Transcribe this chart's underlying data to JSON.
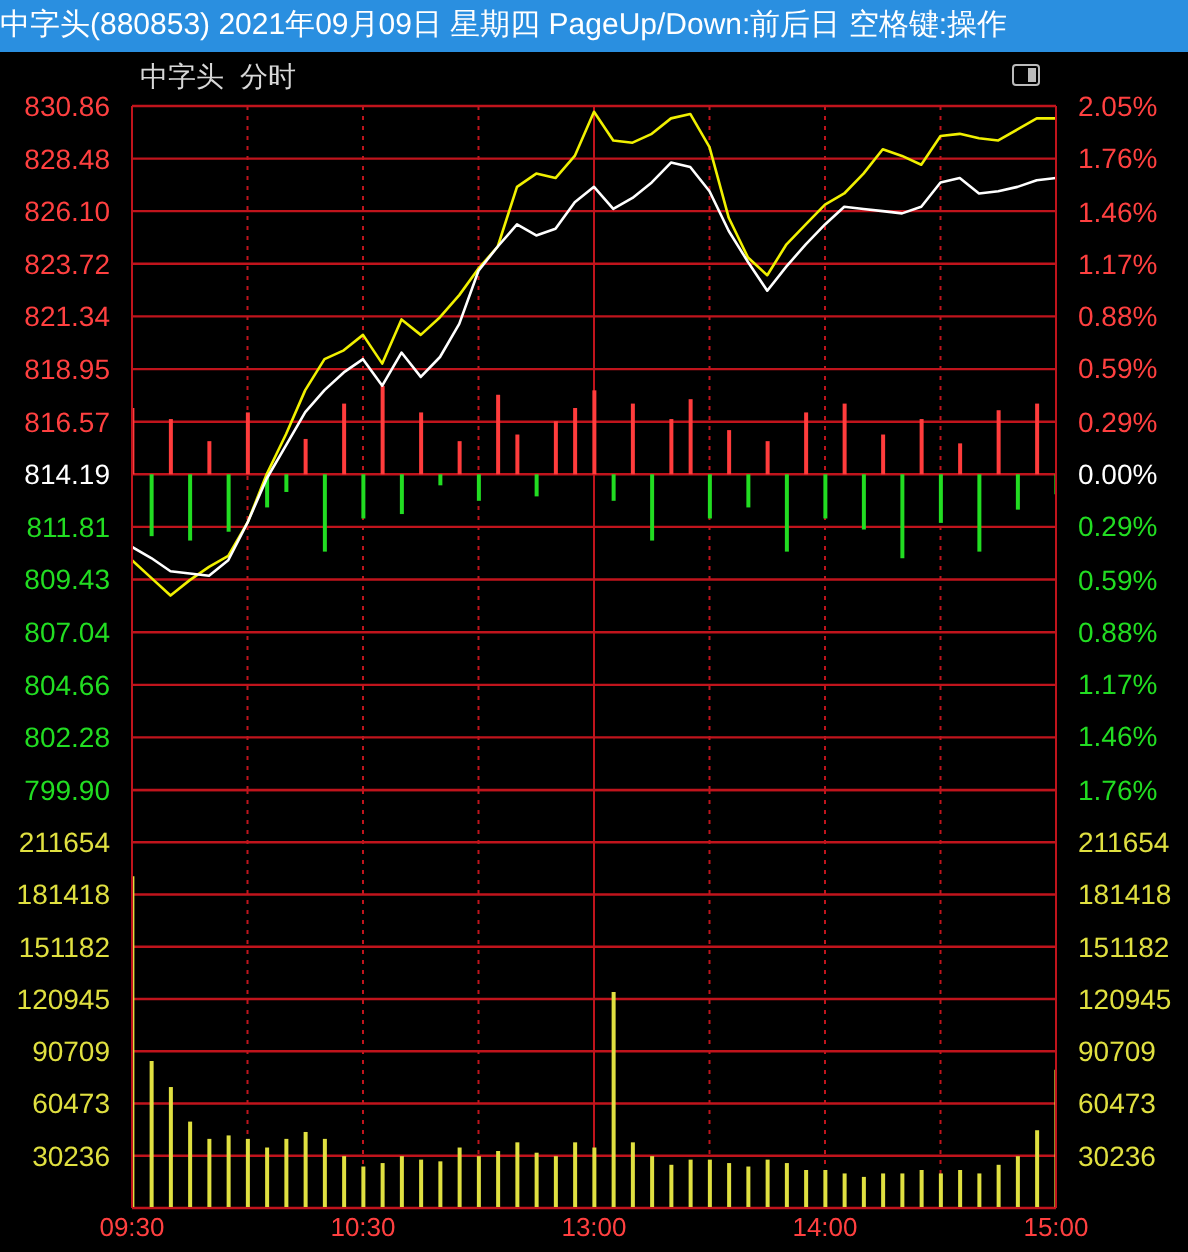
{
  "chart_data": [
    {
      "type": "line",
      "title": "中字头(880853) 2021年09月09日 星期四 PageUp/Down:前后日 空格键:操作",
      "subtitle": "中字头  分时",
      "categories": [
        null,
        null,
        null,
        null,
        null,
        null,
        null,
        null,
        null,
        null,
        null,
        null,
        null,
        null,
        null,
        null,
        null,
        null,
        null,
        null,
        null,
        null,
        null,
        null,
        null,
        null,
        null,
        null,
        null,
        null,
        null,
        null,
        null,
        null,
        null,
        null,
        null,
        null,
        null,
        null,
        null,
        null,
        null,
        null,
        null,
        null,
        null,
        null,
        null
      ],
      "series": [
        {
          "color": "#f0f000",
          "values": [
            810.3,
            809.5,
            808.7,
            809.4,
            810.0,
            810.5,
            812.0,
            814.2,
            816.0,
            818.0,
            819.4,
            819.8,
            820.5,
            819.2,
            821.2,
            820.5,
            821.3,
            822.3,
            823.5,
            824.5,
            827.2,
            827.8,
            827.6,
            828.6,
            830.6,
            829.3,
            829.2,
            829.6,
            830.3,
            830.5,
            829.0,
            825.8,
            824.0,
            823.2,
            824.6,
            825.5,
            826.4,
            826.9,
            827.8,
            828.9,
            828.6,
            828.2,
            829.5,
            829.6,
            829.4,
            829.3,
            829.8,
            830.3,
            830.3
          ]
        },
        {
          "color": "#ffffff",
          "values": [
            810.9,
            810.4,
            809.8,
            809.7,
            809.6,
            810.3,
            812.0,
            814.0,
            815.5,
            817.0,
            818.0,
            818.8,
            819.4,
            818.2,
            819.7,
            818.6,
            819.5,
            821.0,
            823.4,
            824.5,
            825.5,
            825.0,
            825.3,
            826.5,
            827.2,
            826.2,
            826.7,
            827.4,
            828.3,
            828.1,
            827.0,
            825.2,
            823.8,
            822.5,
            823.6,
            824.6,
            825.5,
            826.3,
            826.2,
            826.1,
            826.0,
            826.3,
            827.4,
            827.6,
            826.9,
            827.0,
            827.2,
            827.5,
            827.6
          ]
        },
        {
          "type": "bar",
          "values": [
            3.0,
            -2.8,
            2.5,
            -3.0,
            1.5,
            -2.6,
            2.8,
            -1.5,
            -0.8,
            1.6,
            -3.5,
            3.2,
            -2.0,
            4.0,
            -1.8,
            2.8,
            -0.5,
            1.5,
            -1.2,
            3.6,
            1.8,
            -1.0,
            2.4,
            3.0,
            3.8,
            -1.2,
            3.2,
            -3.0,
            2.5,
            3.4,
            -2.0,
            2.0,
            -1.5,
            1.5,
            -3.5,
            2.8,
            -2.0,
            3.2,
            -2.5,
            1.8,
            -3.8,
            2.5,
            -2.2,
            1.4,
            -3.5,
            2.9,
            -1.6,
            3.2,
            -0.9
          ],
          "base": [
            814.19,
            814.19,
            814.19,
            814.19,
            814.19,
            814.19,
            814.19,
            814.19,
            814.19,
            814.19,
            814.19,
            814.19,
            814.19,
            814.19,
            814.19,
            814.19,
            814.19,
            814.19,
            814.19,
            814.19,
            814.19,
            814.19,
            814.19,
            814.19,
            814.19,
            814.19,
            814.19,
            814.19,
            814.19,
            814.19,
            814.19,
            814.19,
            814.19,
            814.19,
            814.19,
            814.19,
            814.19,
            814.19,
            814.19,
            814.19,
            814.19,
            814.19,
            814.19,
            814.19,
            814.19,
            814.19,
            814.19,
            814.19,
            814.19
          ],
          "colors": [
            "#ff3c3c",
            "#22dd22",
            "#ff3c3c",
            "#22dd22",
            "#ff3c3c",
            "#22dd22",
            "#ff3c3c",
            "#22dd22",
            "#22dd22",
            "#ff3c3c",
            "#22dd22",
            "#ff3c3c",
            "#22dd22",
            "#ff3c3c",
            "#22dd22",
            "#ff3c3c",
            "#22dd22",
            "#ff3c3c",
            "#22dd22",
            "#ff3c3c",
            "#ff3c3c",
            "#22dd22",
            "#ff3c3c",
            "#ff3c3c",
            "#ff3c3c",
            "#22dd22",
            "#ff3c3c",
            "#22dd22",
            "#ff3c3c",
            "#ff3c3c",
            "#22dd22",
            "#ff3c3c",
            "#22dd22",
            "#ff3c3c",
            "#22dd22",
            "#ff3c3c",
            "#22dd22",
            "#ff3c3c",
            "#22dd22",
            "#ff3c3c",
            "#22dd22",
            "#ff3c3c",
            "#22dd22",
            "#ff3c3c",
            "#22dd22",
            "#ff3c3c",
            "#22dd22",
            "#ff3c3c",
            "#22dd22"
          ]
        }
      ],
      "ylim": [
        799.9,
        830.86
      ],
      "yticks": [
        830.86,
        828.48,
        {
          "value": 826.1,
          "label": "826.10"
        },
        823.72,
        821.34,
        818.95,
        816.57,
        814.19,
        811.81,
        809.43,
        807.04,
        804.66,
        802.28,
        {
          "value": 799.9,
          "label": "799.90"
        }
      ],
      "y2lim": [
        -1.76,
        2.05
      ],
      "y2ticks": [
        {
          "value": 2.05,
          "label": "2.05%"
        },
        {
          "value": 1.76,
          "label": "1.76%"
        },
        {
          "value": 1.46,
          "label": "1.46%"
        },
        {
          "value": 1.17,
          "label": "1.17%"
        },
        {
          "value": 0.88,
          "label": "0.88%"
        },
        {
          "value": 0.59,
          "label": "0.59%"
        },
        {
          "value": 0.29,
          "label": "0.29%"
        },
        {
          "value": 0,
          "label": "0.00%"
        },
        {
          "value": -0.29,
          "label": "0.29%"
        },
        {
          "value": -0.59,
          "label": "0.59%"
        },
        {
          "value": -0.88,
          "label": "0.88%"
        },
        {
          "value": -1.17,
          "label": "1.17%"
        },
        {
          "value": -1.46,
          "label": "1.46%"
        },
        {
          "value": -1.76,
          "label": "1.76%"
        }
      ],
      "grid": true,
      "tick_labels": "y"
    },
    {
      "type": "bar",
      "categories": [
        "09:30",
        null,
        null,
        null,
        null,
        null,
        null,
        null,
        null,
        null,
        null,
        null,
        "10:30",
        null,
        null,
        null,
        null,
        null,
        null,
        null,
        null,
        null,
        null,
        null,
        "13:00",
        null,
        null,
        null,
        null,
        null,
        null,
        null,
        null,
        null,
        null,
        null,
        "14:00",
        null,
        null,
        null,
        null,
        null,
        null,
        null,
        null,
        null,
        null,
        null,
        "15:00"
      ],
      "values": [
        192000,
        85000,
        70000,
        50000,
        40000,
        42000,
        40000,
        35000,
        40000,
        44000,
        40000,
        30000,
        24000,
        26000,
        30000,
        28000,
        27000,
        35000,
        30000,
        33000,
        38000,
        32000,
        30000,
        38000,
        35000,
        125000,
        38000,
        30000,
        25000,
        28000,
        28000,
        26000,
        24000,
        28000,
        26000,
        22000,
        22000,
        20000,
        18000,
        20000,
        20000,
        22000,
        20000,
        22000,
        20000,
        25000,
        30000,
        45000,
        80000
      ],
      "color": "#e0e040",
      "ylim": [
        0,
        241890
      ],
      "yticks": [
        211654,
        181418,
        151182,
        120945,
        90709,
        60473,
        30236
      ],
      "y2lim": [
        0,
        241890
      ],
      "y2ticks": [
        211654,
        181418,
        151182,
        120945,
        90709,
        60473,
        30236
      ],
      "grid": true
    }
  ]
}
